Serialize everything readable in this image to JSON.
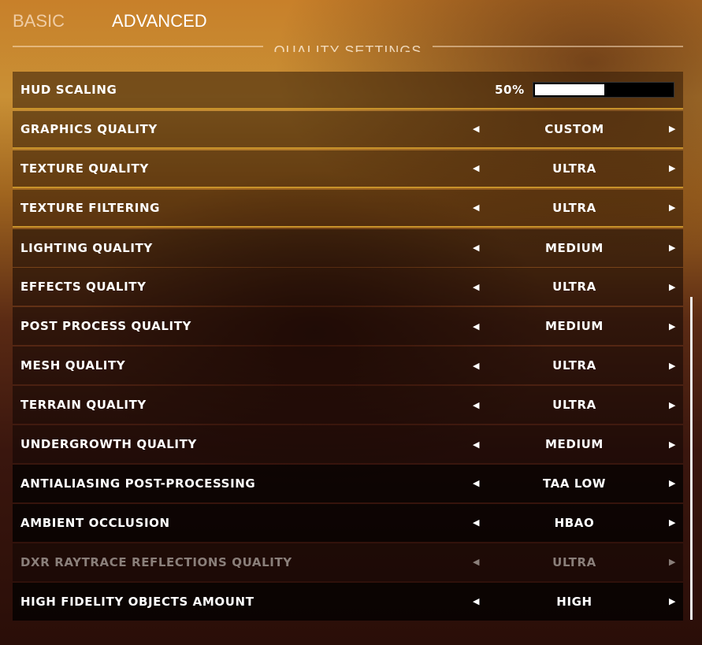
{
  "tabs": [
    {
      "label": "BASIC",
      "active": false
    },
    {
      "label": "ADVANCED",
      "active": true
    }
  ],
  "section_title": "QUALITY SETTINGS",
  "hud": {
    "label": "HUD SCALING",
    "value": "50%",
    "percent": 50
  },
  "settings": [
    {
      "label": "GRAPHICS QUALITY",
      "value": "CUSTOM"
    },
    {
      "label": "TEXTURE QUALITY",
      "value": "ULTRA"
    },
    {
      "label": "TEXTURE FILTERING",
      "value": "ULTRA"
    },
    {
      "label": "LIGHTING QUALITY",
      "value": "MEDIUM"
    },
    {
      "label": "EFFECTS QUALITY",
      "value": "ULTRA"
    },
    {
      "label": "POST PROCESS QUALITY",
      "value": "MEDIUM"
    },
    {
      "label": "MESH QUALITY",
      "value": "ULTRA"
    },
    {
      "label": "TERRAIN QUALITY",
      "value": "ULTRA"
    },
    {
      "label": "UNDERGROWTH QUALITY",
      "value": "MEDIUM"
    },
    {
      "label": "ANTIALIASING POST-PROCESSING",
      "value": "TAA LOW"
    },
    {
      "label": "AMBIENT OCCLUSION",
      "value": "HBAO"
    },
    {
      "label": "DXR RAYTRACE REFLECTIONS QUALITY",
      "value": "ULTRA",
      "disabled": true
    },
    {
      "label": "HIGH FIDELITY OBJECTS AMOUNT",
      "value": "HIGH"
    }
  ],
  "colors": {
    "accent": "#c8922a"
  }
}
